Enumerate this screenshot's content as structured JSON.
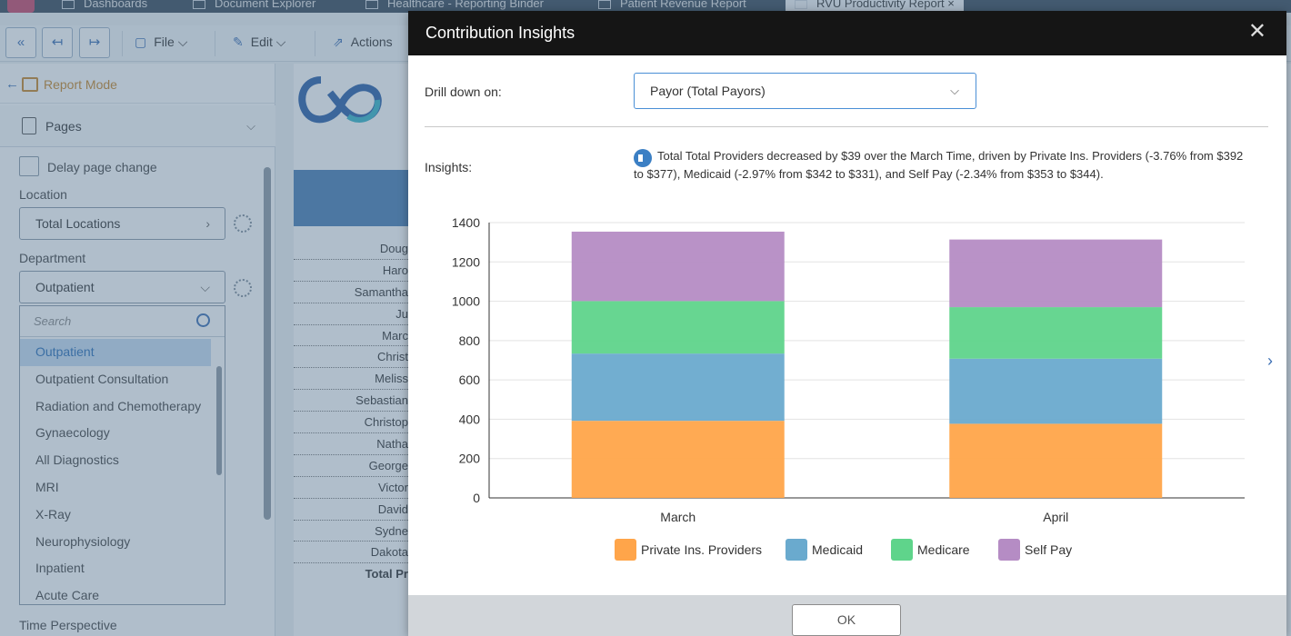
{
  "tabs": [
    {
      "label": "Dashboards"
    },
    {
      "label": "Document Explorer"
    },
    {
      "label": "Healthcare - Reporting Binder"
    },
    {
      "label": "Patient Revenue Report"
    },
    {
      "label": "RVU Productivity Report",
      "close": "×"
    }
  ],
  "toolbar": {
    "first_icon": "«",
    "prev_icon": "↤",
    "next_icon": "↦",
    "file_label": "File",
    "edit_label": "Edit",
    "actions_label": "Actions",
    "dropdown_glyph": "⌵"
  },
  "sidebar": {
    "back_glyph": "←",
    "report_mode": "Report Mode",
    "pages_label": "Pages",
    "pages_chevron": "⌵",
    "delay_label": "Delay page change",
    "location_label": "Location",
    "location_value": "Total Locations",
    "location_arrow": "›",
    "department_label": "Department",
    "department_value": "Outpatient",
    "department_arrow": "⌵",
    "search_placeholder": "Search",
    "department_options": [
      {
        "label": "Outpatient"
      },
      {
        "label": "Outpatient Consultation"
      },
      {
        "label": "Radiation and Chemotherapy"
      },
      {
        "label": "Gynaecology"
      },
      {
        "label": "All Diagnostics"
      },
      {
        "label": "MRI"
      },
      {
        "label": "X-Ray"
      },
      {
        "label": "Neurophysiology"
      },
      {
        "label": "Inpatient"
      },
      {
        "label": "Acute Care"
      }
    ],
    "time_perspective_label": "Time Perspective"
  },
  "report": {
    "provider_names": [
      {
        "name": "Doug"
      },
      {
        "name": "Haro"
      },
      {
        "name": "Samantha"
      },
      {
        "name": "Ju"
      },
      {
        "name": "Marc"
      },
      {
        "name": "Christ"
      },
      {
        "name": "Meliss"
      },
      {
        "name": "Sebastian"
      },
      {
        "name": "Christop"
      },
      {
        "name": "Natha"
      },
      {
        "name": "George"
      },
      {
        "name": "Victor"
      },
      {
        "name": "David"
      },
      {
        "name": "Sydne"
      },
      {
        "name": "Dakota"
      }
    ],
    "total_label": "Total Pr"
  },
  "modal": {
    "title": "Contribution Insights",
    "close_glyph": "✕",
    "drill_label": "Drill down on:",
    "drill_value": "Payor (Total Payors)",
    "drill_chevron": "⌵",
    "insights_label": "Insights:",
    "insights_text": "Total Total Providers decreased by $39 over the March Time, driven by Private Ins. Providers (-3.76% from $392 to $377), Medicaid (-2.97% from $342 to $331), and Self Pay (-2.34% from $353 to $344).",
    "next_glyph": "›",
    "ok_label": "OK"
  },
  "colors": {
    "private": "#ffa54a",
    "medicaid": "#6aaace",
    "medicare": "#5fd48b",
    "selfpay": "#b58cc4"
  },
  "chart_data": {
    "type": "bar",
    "stacked": true,
    "categories": [
      "March",
      "April"
    ],
    "series": [
      {
        "name": "Private Ins. Providers",
        "values": [
          392,
          377
        ]
      },
      {
        "name": "Medicaid",
        "values": [
          342,
          331
        ]
      },
      {
        "name": "Medicare",
        "values": [
          267,
          262
        ]
      },
      {
        "name": "Self Pay",
        "values": [
          353,
          344
        ]
      }
    ],
    "yticks": [
      "0",
      "200",
      "400",
      "600",
      "800",
      "1000",
      "1200",
      "1400"
    ],
    "ylim": [
      0,
      1400
    ],
    "legend_position": "bottom",
    "grid": true
  }
}
